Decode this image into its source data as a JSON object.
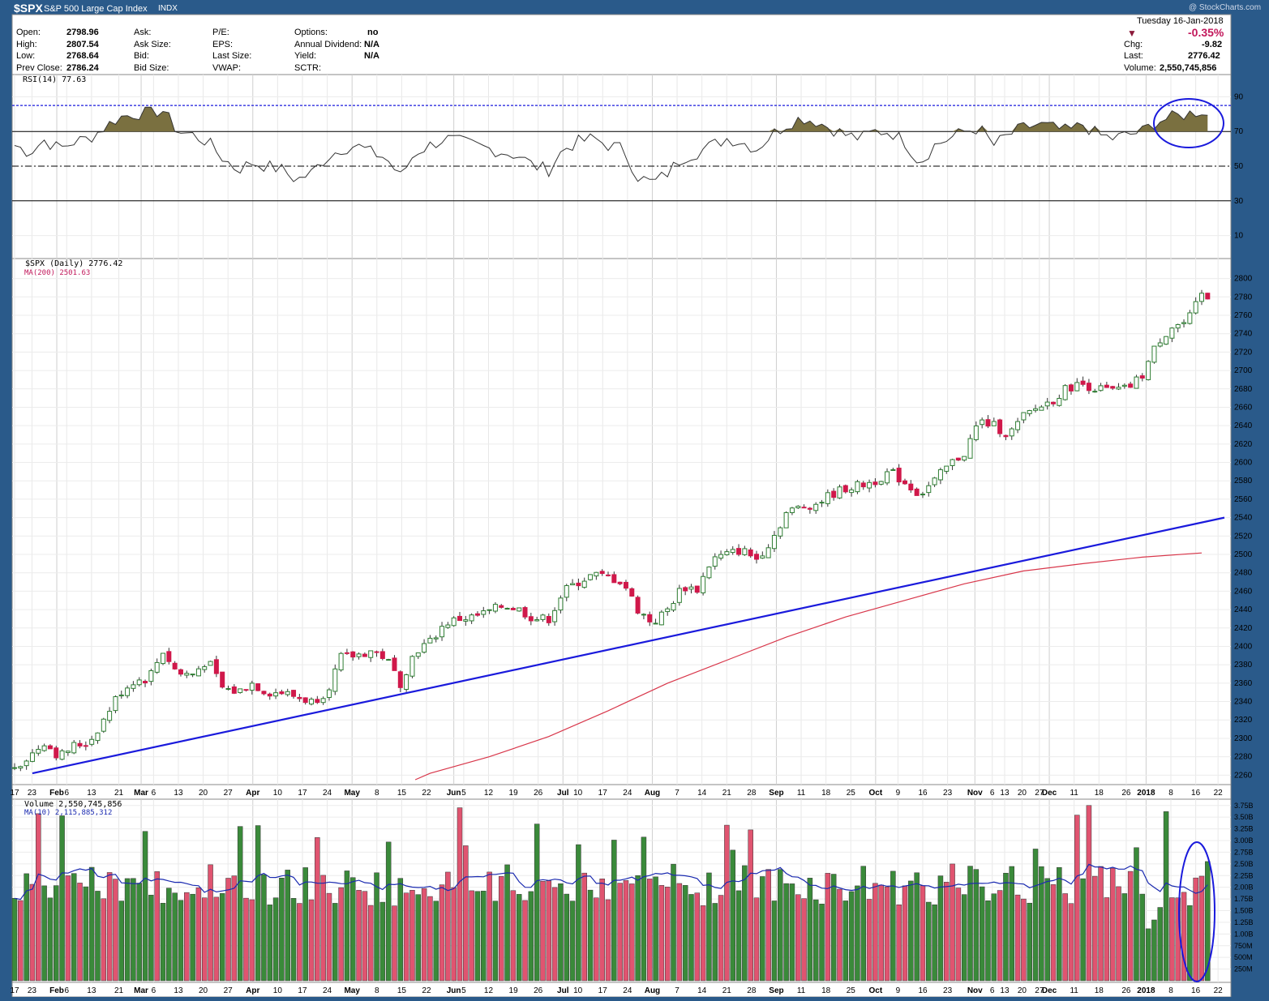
{
  "header": {
    "symbol": "$SPX",
    "name": "S&P 500 Large Cap Index",
    "exchange": "INDX",
    "watermark": "@ StockCharts.com",
    "date": "Tuesday  16-Jan-2018",
    "pct_change": "-0.35%",
    "chg_label": "Chg:",
    "chg_value": "-9.82",
    "last_label": "Last:",
    "last_value": "2776.42",
    "volume_label": "Volume:",
    "volume_value": "2,550,745,856",
    "down_color": "#8b1a3a"
  },
  "quote": {
    "open_label": "Open:",
    "open": "2798.96",
    "high_label": "High:",
    "high": "2807.54",
    "low_label": "Low:",
    "low": "2768.64",
    "prev_label": "Prev Close:",
    "prev": "2786.24",
    "ask_label": "Ask:",
    "ask_size_label": "Ask Size:",
    "bid_label": "Bid:",
    "bid_size_label": "Bid Size:",
    "pe_label": "P/E:",
    "eps_label": "EPS:",
    "last_size_label": "Last Size:",
    "vwap_label": "VWAP:",
    "options_label": "Options:",
    "options": "no",
    "div_label": "Annual Dividend:",
    "div": "N/A",
    "yield_label": "Yield:",
    "yield": "N/A",
    "sctr_label": "SCTR:"
  },
  "rsi": {
    "label": "RSI(14) 77.63",
    "ticks": [
      "90",
      "70",
      "50",
      "30",
      "10"
    ],
    "overbought": 70,
    "oversold": 30,
    "mid": 50,
    "dotted_line": 85,
    "ylim": [
      0,
      100
    ],
    "fill_color": "#7a7040"
  },
  "price": {
    "label": "$SPX (Daily) 2776.42",
    "ma_label": "MA(200) 2501.63",
    "ticks": [
      "2800",
      "2780",
      "2760",
      "2740",
      "2720",
      "2700",
      "2680",
      "2660",
      "2640",
      "2620",
      "2600",
      "2580",
      "2560",
      "2540",
      "2520",
      "2500",
      "2480",
      "2460",
      "2440",
      "2420",
      "2400",
      "2380",
      "2360",
      "2340",
      "2320",
      "2300",
      "2280",
      "2260"
    ],
    "ylim": [
      2255,
      2812
    ],
    "up_color": "#2e7d32",
    "down_color": "#d0184a",
    "trendline_color": "#1a1adc",
    "ma_color": "#d8364a"
  },
  "volume": {
    "label": "Volume 2,550,745,856",
    "ma_label": "MA(10) 2,115,885,312",
    "ticks": [
      "3.75B",
      "3.50B",
      "3.25B",
      "3.00B",
      "2.75B",
      "2.50B",
      "2.25B",
      "2.00B",
      "1.75B",
      "1.50B",
      "1.25B",
      "1.00B",
      "750M",
      "500M",
      "250M"
    ],
    "ylim": [
      0,
      3.85
    ],
    "up_color": "#3a8a3a",
    "down_color": "#e05470",
    "ma_color": "#1a2ab0"
  },
  "x_axis": {
    "labels": [
      {
        "t": "17",
        "b": false
      },
      {
        "t": "23",
        "b": false
      },
      {
        "t": "Feb",
        "b": true
      },
      {
        "t": "6",
        "b": false
      },
      {
        "t": "13",
        "b": false
      },
      {
        "t": "21",
        "b": false
      },
      {
        "t": "Mar",
        "b": true
      },
      {
        "t": "6",
        "b": false
      },
      {
        "t": "13",
        "b": false
      },
      {
        "t": "20",
        "b": false
      },
      {
        "t": "27",
        "b": false
      },
      {
        "t": "Apr",
        "b": true
      },
      {
        "t": "10",
        "b": false
      },
      {
        "t": "17",
        "b": false
      },
      {
        "t": "24",
        "b": false
      },
      {
        "t": "May",
        "b": true
      },
      {
        "t": "8",
        "b": false
      },
      {
        "t": "15",
        "b": false
      },
      {
        "t": "22",
        "b": false
      },
      {
        "t": "Jun",
        "b": true
      },
      {
        "t": "5",
        "b": false
      },
      {
        "t": "12",
        "b": false
      },
      {
        "t": "19",
        "b": false
      },
      {
        "t": "26",
        "b": false
      },
      {
        "t": "Jul",
        "b": true
      },
      {
        "t": "10",
        "b": false
      },
      {
        "t": "17",
        "b": false
      },
      {
        "t": "24",
        "b": false
      },
      {
        "t": "Aug",
        "b": true
      },
      {
        "t": "7",
        "b": false
      },
      {
        "t": "14",
        "b": false
      },
      {
        "t": "21",
        "b": false
      },
      {
        "t": "28",
        "b": false
      },
      {
        "t": "Sep",
        "b": true
      },
      {
        "t": "11",
        "b": false
      },
      {
        "t": "18",
        "b": false
      },
      {
        "t": "25",
        "b": false
      },
      {
        "t": "Oct",
        "b": true
      },
      {
        "t": "9",
        "b": false
      },
      {
        "t": "16",
        "b": false
      },
      {
        "t": "23",
        "b": false
      },
      {
        "t": "Nov",
        "b": true
      },
      {
        "t": "6",
        "b": false
      },
      {
        "t": "13",
        "b": false
      },
      {
        "t": "20",
        "b": false
      },
      {
        "t": "27",
        "b": false
      },
      {
        "t": "Dec",
        "b": true
      },
      {
        "t": "11",
        "b": false
      },
      {
        "t": "18",
        "b": false
      },
      {
        "t": "26",
        "b": false
      },
      {
        "t": "2018",
        "b": true
      },
      {
        "t": "8",
        "b": false
      },
      {
        "t": "16",
        "b": false
      },
      {
        "t": "22",
        "b": false
      }
    ]
  },
  "chart_data": {
    "type": "candlestick",
    "title": "$SPX S&P 500 Large Cap Index INDX",
    "x_start": "17-Jan-2017",
    "x_end": "16-Jan-2018",
    "close_path": [
      [
        0,
        2270
      ],
      [
        0.5,
        2280
      ],
      [
        1,
        2296
      ],
      [
        1.5,
        2280
      ],
      [
        2,
        2292
      ],
      [
        2.5,
        2295
      ],
      [
        3,
        2320
      ],
      [
        3.5,
        2348
      ],
      [
        4,
        2362
      ],
      [
        4.5,
        2365
      ],
      [
        5,
        2395
      ],
      [
        5.5,
        2370
      ],
      [
        6,
        2370
      ],
      [
        6.5,
        2385
      ],
      [
        7,
        2355
      ],
      [
        7.5,
        2350
      ],
      [
        8,
        2360
      ],
      [
        8.5,
        2350
      ],
      [
        9,
        2350
      ],
      [
        9.5,
        2345
      ],
      [
        10,
        2340
      ],
      [
        10.5,
        2350
      ],
      [
        11,
        2388
      ],
      [
        11.5,
        2390
      ],
      [
        12,
        2395
      ],
      [
        12.5,
        2388
      ],
      [
        13,
        2360
      ],
      [
        13.5,
        2395
      ],
      [
        14,
        2405
      ],
      [
        14.5,
        2425
      ],
      [
        15,
        2430
      ],
      [
        15.5,
        2432
      ],
      [
        16,
        2438
      ],
      [
        16.5,
        2445
      ],
      [
        17,
        2440
      ],
      [
        17.5,
        2430
      ],
      [
        18,
        2430
      ],
      [
        18.5,
        2460
      ],
      [
        19,
        2470
      ],
      [
        19.5,
        2478
      ],
      [
        20,
        2475
      ],
      [
        20.5,
        2470
      ],
      [
        21,
        2440
      ],
      [
        21.5,
        2425
      ],
      [
        22,
        2440
      ],
      [
        22.5,
        2465
      ],
      [
        23,
        2462
      ],
      [
        23.5,
        2495
      ],
      [
        24,
        2500
      ],
      [
        24.5,
        2505
      ],
      [
        25,
        2495
      ],
      [
        25.5,
        2515
      ],
      [
        26,
        2545
      ],
      [
        26.5,
        2552
      ],
      [
        27,
        2555
      ],
      [
        27.5,
        2565
      ],
      [
        28,
        2572
      ],
      [
        28.5,
        2575
      ],
      [
        29,
        2580
      ],
      [
        29.5,
        2590
      ],
      [
        30,
        2578
      ],
      [
        30.5,
        2565
      ],
      [
        31,
        2580
      ],
      [
        31.5,
        2598
      ],
      [
        32,
        2610
      ],
      [
        32.5,
        2645
      ],
      [
        33,
        2640
      ],
      [
        33.5,
        2630
      ],
      [
        34,
        2650
      ],
      [
        34.5,
        2660
      ],
      [
        35,
        2668
      ],
      [
        35.5,
        2682
      ],
      [
        36,
        2685
      ],
      [
        36.5,
        2680
      ],
      [
        37,
        2678
      ],
      [
        37.5,
        2680
      ],
      [
        38,
        2695
      ],
      [
        38.5,
        2730
      ],
      [
        39,
        2748
      ],
      [
        39.5,
        2752
      ],
      [
        40,
        2782
      ],
      [
        40.3,
        2776
      ]
    ],
    "ma200_path": [
      [
        13.5,
        2255
      ],
      [
        14,
        2262
      ],
      [
        16,
        2280
      ],
      [
        18,
        2302
      ],
      [
        20,
        2330
      ],
      [
        22,
        2360
      ],
      [
        24,
        2385
      ],
      [
        26,
        2410
      ],
      [
        28,
        2432
      ],
      [
        30,
        2450
      ],
      [
        32,
        2468
      ],
      [
        34,
        2482
      ],
      [
        36,
        2490
      ],
      [
        38,
        2497
      ],
      [
        40,
        2501.63
      ]
    ],
    "trendline": [
      [
        0.6,
        2262
      ],
      [
        40.3,
        2540
      ]
    ],
    "rsi_last": 77.63,
    "rsi_path": [
      [
        0,
        62
      ],
      [
        0.5,
        58
      ],
      [
        1,
        65
      ],
      [
        1.5,
        60
      ],
      [
        2,
        64
      ],
      [
        2.5,
        66
      ],
      [
        3,
        72
      ],
      [
        3.5,
        78
      ],
      [
        4,
        80
      ],
      [
        4.5,
        81
      ],
      [
        5,
        82
      ],
      [
        5.5,
        70
      ],
      [
        6,
        68
      ],
      [
        6.5,
        64
      ],
      [
        7,
        55
      ],
      [
        7.5,
        48
      ],
      [
        8,
        52
      ],
      [
        8.5,
        50
      ],
      [
        9,
        48
      ],
      [
        9.5,
        42
      ],
      [
        10,
        46
      ],
      [
        10.5,
        55
      ],
      [
        11,
        60
      ],
      [
        11.5,
        62
      ],
      [
        12,
        58
      ],
      [
        12.5,
        55
      ],
      [
        13,
        44
      ],
      [
        13.5,
        58
      ],
      [
        14,
        62
      ],
      [
        14.5,
        66
      ],
      [
        15,
        64
      ],
      [
        15.5,
        62
      ],
      [
        16,
        60
      ],
      [
        16.5,
        58
      ],
      [
        17,
        56
      ],
      [
        17.5,
        50
      ],
      [
        18,
        48
      ],
      [
        18.5,
        60
      ],
      [
        19,
        64
      ],
      [
        19.5,
        66
      ],
      [
        20,
        62
      ],
      [
        20.5,
        60
      ],
      [
        21,
        44
      ],
      [
        21.5,
        40
      ],
      [
        22,
        46
      ],
      [
        22.5,
        55
      ],
      [
        23,
        58
      ],
      [
        23.5,
        62
      ],
      [
        24,
        66
      ],
      [
        24.5,
        64
      ],
      [
        25,
        60
      ],
      [
        25.5,
        68
      ],
      [
        26,
        74
      ],
      [
        26.5,
        78
      ],
      [
        27,
        76
      ],
      [
        27.5,
        72
      ],
      [
        28,
        68
      ],
      [
        28.5,
        66
      ],
      [
        29,
        70
      ],
      [
        29.5,
        70
      ],
      [
        30,
        64
      ],
      [
        30.5,
        52
      ],
      [
        31,
        62
      ],
      [
        31.5,
        66
      ],
      [
        32,
        70
      ],
      [
        32.5,
        72
      ],
      [
        33,
        62
      ],
      [
        33.5,
        68
      ],
      [
        34,
        72
      ],
      [
        34.5,
        74
      ],
      [
        35,
        72
      ],
      [
        35.5,
        70
      ],
      [
        36,
        74
      ],
      [
        36.5,
        68
      ],
      [
        37,
        66
      ],
      [
        37.5,
        68
      ],
      [
        38,
        70
      ],
      [
        38.5,
        76
      ],
      [
        39,
        78
      ],
      [
        39.5,
        80
      ],
      [
        40,
        82
      ],
      [
        40.3,
        77.63
      ]
    ],
    "volume_ma_last": 2.116,
    "volume_last": 2.551
  }
}
